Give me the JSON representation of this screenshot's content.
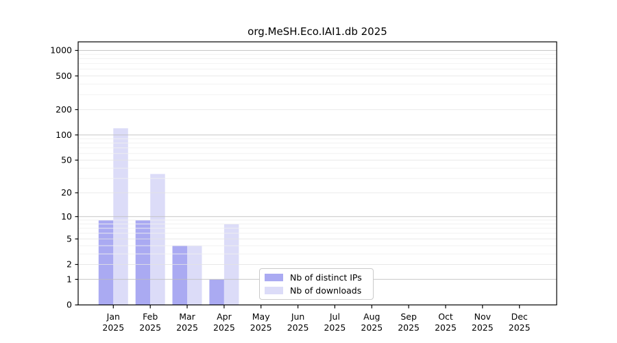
{
  "title": "org.MeSH.Eco.IAI1.db 2025",
  "chart_data": {
    "type": "bar",
    "title": "org.MeSH.Eco.IAI1.db 2025",
    "categories": [
      "Jan",
      "Feb",
      "Mar",
      "Apr",
      "May",
      "Jun",
      "Jul",
      "Aug",
      "Sep",
      "Oct",
      "Nov",
      "Dec"
    ],
    "year": "2025",
    "series": [
      {
        "name": "Nb of distinct IPs",
        "color": "#aaaaf2",
        "values": [
          9,
          9,
          4,
          1,
          0,
          0,
          0,
          0,
          0,
          0,
          0,
          0
        ]
      },
      {
        "name": "Nb of downloads",
        "color": "#dcdcf8",
        "values": [
          120,
          34,
          4,
          8,
          0,
          0,
          0,
          0,
          0,
          0,
          0,
          0
        ]
      }
    ],
    "yticks": [
      0,
      1,
      2,
      5,
      10,
      20,
      50,
      100,
      200,
      500,
      1000
    ],
    "yscale": "log1p",
    "ylim": [
      0,
      1270
    ],
    "grid": true,
    "legend_position": "lower center-right inside plot"
  },
  "colors": {
    "axis": "#000000",
    "grid_major": "#bdbdbd",
    "grid_labeled": "#e4e4e4",
    "grid_minor": "#f0f0f0",
    "background": "#ffffff"
  }
}
